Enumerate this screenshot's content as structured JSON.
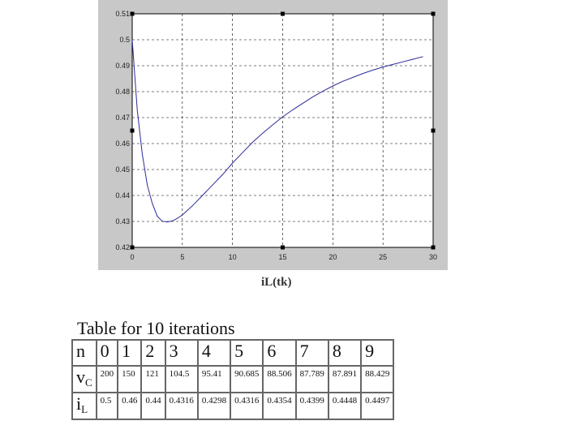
{
  "chart_data": {
    "type": "line",
    "xlabel": "iL(tk)",
    "xlim": [
      0,
      30
    ],
    "ylim": [
      0.42,
      0.51
    ],
    "x_ticks": [
      "0",
      "5",
      "10",
      "15",
      "20",
      "25",
      "30"
    ],
    "y_ticks": [
      "0.42",
      "0.43",
      "0.44",
      "0.45",
      "0.46",
      "0.47",
      "0.48",
      "0.49",
      "0.5",
      "0.51"
    ],
    "grid": true,
    "series": [
      {
        "color": "#2a2a9a",
        "x": [
          0,
          0.5,
          1,
          1.5,
          2,
          2.5,
          3,
          3.5,
          4,
          4.5,
          5,
          6,
          7,
          8,
          9,
          10,
          11,
          12,
          13,
          14,
          15,
          16,
          17,
          18,
          19,
          20,
          21,
          22,
          23,
          24,
          25,
          26,
          27,
          28,
          29
        ],
        "y": [
          0.5,
          0.473,
          0.456,
          0.444,
          0.437,
          0.432,
          0.4301,
          0.4298,
          0.4302,
          0.4312,
          0.4325,
          0.436,
          0.44,
          0.444,
          0.448,
          0.4525,
          0.4565,
          0.4605,
          0.464,
          0.4672,
          0.4703,
          0.473,
          0.4755,
          0.478,
          0.4802,
          0.4822,
          0.484,
          0.4855,
          0.487,
          0.4883,
          0.4895,
          0.4905,
          0.4915,
          0.4925,
          0.4935
        ]
      }
    ]
  },
  "table": {
    "title": "Table for 10 iterations",
    "n_label": "n",
    "vc_label": "v",
    "vc_sub": "C",
    "il_label": "i",
    "il_sub": "L",
    "n": [
      "0",
      "1",
      "2",
      "3",
      "4",
      "5",
      "6",
      "7",
      "8",
      "9"
    ],
    "vc": [
      "200",
      "150",
      "121",
      "104.5",
      "95.41",
      "90.685",
      "88.506",
      "87.789",
      "87.891",
      "88.429"
    ],
    "il": [
      "0.5",
      "0.46",
      "0.44",
      "0.4316",
      "0.4298",
      "0.4316",
      "0.4354",
      "0.4399",
      "0.4448",
      "0.4497"
    ]
  }
}
